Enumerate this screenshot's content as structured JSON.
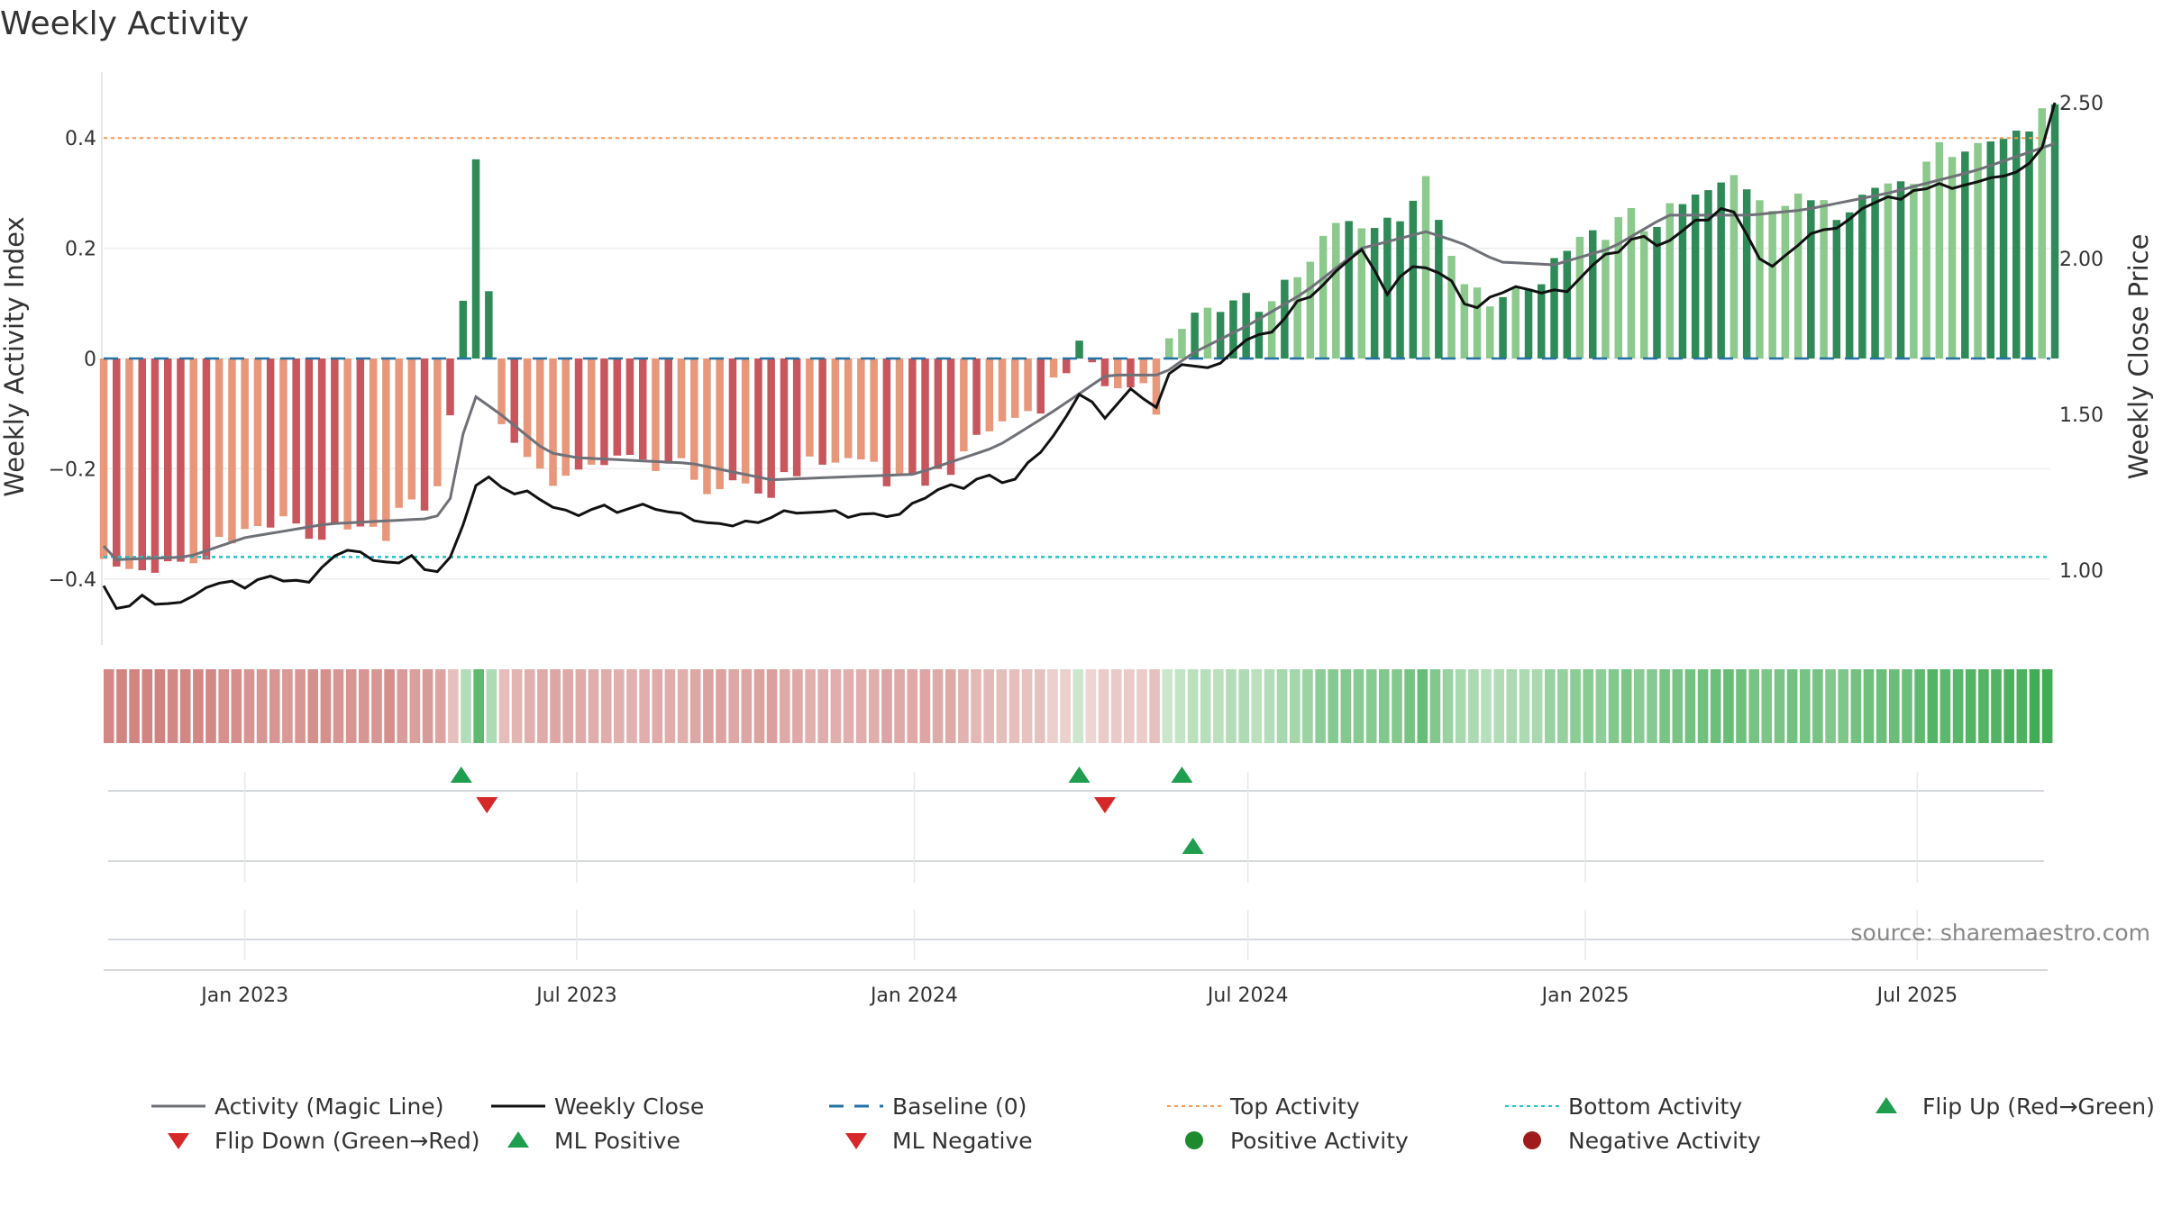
{
  "chart_data": {
    "type": "bar",
    "title": "Weekly Activity",
    "ylabel": "Weekly Activity Index",
    "ylabel_right": "Weekly Close Price",
    "ylim": [
      -0.52,
      0.52
    ],
    "ylim_right": [
      0.78,
      2.6
    ],
    "yticks": [
      -0.4,
      -0.2,
      0,
      0.2,
      0.4
    ],
    "ytick_labels": [
      "−0.4",
      "−0.2",
      "0",
      "0.2",
      "0.4"
    ],
    "yticks_right": [
      1.0,
      1.5,
      2.0,
      2.5
    ],
    "ytick_labels_right": [
      "1.00",
      "1.50",
      "2.00",
      "2.50"
    ],
    "x_start": "2022-10-16",
    "x_end": "2025-09-14",
    "x_ticks": [
      {
        "date": "2023-01-01",
        "label": "Jan 2023"
      },
      {
        "date": "2023-07-01",
        "label": "Jul 2023"
      },
      {
        "date": "2024-01-01",
        "label": "Jan 2024"
      },
      {
        "date": "2024-07-01",
        "label": "Jul 2024"
      },
      {
        "date": "2025-01-01",
        "label": "Jan 2025"
      },
      {
        "date": "2025-07-01",
        "label": "Jul 2025"
      }
    ],
    "top_activity": 0.4,
    "bottom_activity": -0.36,
    "baseline": 0,
    "activity_knots": [
      [
        "2022-10-16",
        -0.37
      ],
      [
        "2022-11-27",
        -0.36
      ],
      [
        "2023-01-01",
        -0.33
      ],
      [
        "2023-02-15",
        -0.3
      ],
      [
        "2023-03-15",
        -0.3
      ],
      [
        "2023-04-15",
        -0.28
      ],
      [
        "2023-04-29",
        0.02
      ],
      [
        "2023-05-06",
        0.39
      ],
      [
        "2023-05-20",
        -0.1
      ],
      [
        "2023-06-15",
        -0.2
      ],
      [
        "2023-07-01",
        -0.2
      ],
      [
        "2023-09-01",
        -0.21
      ],
      [
        "2023-10-15",
        -0.23
      ],
      [
        "2023-11-15",
        -0.2
      ],
      [
        "2024-01-01",
        -0.21
      ],
      [
        "2024-02-15",
        -0.14
      ],
      [
        "2024-03-10",
        -0.1
      ],
      [
        "2024-03-24",
        -0.02
      ],
      [
        "2024-03-31",
        0.04
      ],
      [
        "2024-04-14",
        -0.05
      ],
      [
        "2024-05-05",
        -0.04
      ],
      [
        "2024-05-12",
        -0.08
      ],
      [
        "2024-05-19",
        0.03
      ],
      [
        "2024-06-01",
        0.06
      ],
      [
        "2024-07-01",
        0.1
      ],
      [
        "2024-08-01",
        0.17
      ],
      [
        "2024-08-20",
        0.28
      ],
      [
        "2024-09-01",
        0.22
      ],
      [
        "2024-09-20",
        0.24
      ],
      [
        "2024-10-06",
        0.3
      ],
      [
        "2024-10-25",
        0.15
      ],
      [
        "2024-11-15",
        0.12
      ],
      [
        "2024-12-15",
        0.16
      ],
      [
        "2025-01-15",
        0.22
      ],
      [
        "2025-02-15",
        0.28
      ],
      [
        "2025-03-15",
        0.33
      ],
      [
        "2025-04-15",
        0.26
      ],
      [
        "2025-05-15",
        0.28
      ],
      [
        "2025-06-15",
        0.34
      ],
      [
        "2025-07-15",
        0.36
      ],
      [
        "2025-08-15",
        0.38
      ],
      [
        "2025-09-14",
        0.48
      ]
    ],
    "magic_line_knots": [
      [
        "2022-10-16",
        -0.34
      ],
      [
        "2022-10-23",
        -0.365
      ],
      [
        "2022-12-01",
        -0.36
      ],
      [
        "2023-01-01",
        -0.325
      ],
      [
        "2023-02-15",
        -0.3
      ],
      [
        "2023-04-15",
        -0.29
      ],
      [
        "2023-04-26",
        -0.24
      ],
      [
        "2023-05-03",
        -0.06
      ],
      [
        "2023-05-20",
        -0.1
      ],
      [
        "2023-06-15",
        -0.17
      ],
      [
        "2023-07-01",
        -0.18
      ],
      [
        "2023-09-01",
        -0.19
      ],
      [
        "2023-10-15",
        -0.22
      ],
      [
        "2024-01-01",
        -0.21
      ],
      [
        "2024-02-15",
        -0.16
      ],
      [
        "2024-03-15",
        -0.1
      ],
      [
        "2024-04-15",
        -0.03
      ],
      [
        "2024-05-15",
        -0.03
      ],
      [
        "2024-06-01",
        0.01
      ],
      [
        "2024-07-01",
        0.06
      ],
      [
        "2024-08-01",
        0.12
      ],
      [
        "2024-09-01",
        0.2
      ],
      [
        "2024-10-06",
        0.23
      ],
      [
        "2024-10-25",
        0.21
      ],
      [
        "2024-11-15",
        0.175
      ],
      [
        "2024-12-15",
        0.17
      ],
      [
        "2025-01-15",
        0.2
      ],
      [
        "2025-02-15",
        0.26
      ],
      [
        "2025-04-01",
        0.26
      ],
      [
        "2025-05-01",
        0.27
      ],
      [
        "2025-06-15",
        0.3
      ],
      [
        "2025-08-01",
        0.34
      ],
      [
        "2025-09-14",
        0.39
      ]
    ],
    "close_knots": [
      [
        "2022-10-16",
        0.95
      ],
      [
        "2022-10-23",
        0.89
      ],
      [
        "2022-11-05",
        0.91
      ],
      [
        "2022-11-20",
        0.87
      ],
      [
        "2022-12-15",
        0.94
      ],
      [
        "2023-01-01",
        0.96
      ],
      [
        "2023-01-20",
        0.99
      ],
      [
        "2023-02-01",
        0.97
      ],
      [
        "2023-02-15",
        1.02
      ],
      [
        "2023-02-28",
        1.06
      ],
      [
        "2023-03-15",
        1.01
      ],
      [
        "2023-04-01",
        1.03
      ],
      [
        "2023-04-15",
        1.01
      ],
      [
        "2023-04-26",
        1.06
      ],
      [
        "2023-05-03",
        1.21
      ],
      [
        "2023-05-10",
        1.35
      ],
      [
        "2023-05-20",
        1.28
      ],
      [
        "2023-06-01",
        1.25
      ],
      [
        "2023-06-15",
        1.19
      ],
      [
        "2023-07-01",
        1.17
      ],
      [
        "2023-08-01",
        1.22
      ],
      [
        "2023-09-01",
        1.18
      ],
      [
        "2023-09-20",
        1.13
      ],
      [
        "2023-10-15",
        1.16
      ],
      [
        "2023-11-15",
        1.2
      ],
      [
        "2023-12-15",
        1.18
      ],
      [
        "2024-01-01",
        1.2
      ],
      [
        "2024-01-20",
        1.25
      ],
      [
        "2024-02-10",
        1.28
      ],
      [
        "2024-02-28",
        1.32
      ],
      [
        "2024-03-15",
        1.42
      ],
      [
        "2024-03-31",
        1.57
      ],
      [
        "2024-04-14",
        1.48
      ],
      [
        "2024-04-28",
        1.58
      ],
      [
        "2024-05-12",
        1.5
      ],
      [
        "2024-05-19",
        1.62
      ],
      [
        "2024-06-01",
        1.68
      ],
      [
        "2024-06-15",
        1.67
      ],
      [
        "2024-07-01",
        1.76
      ],
      [
        "2024-07-20",
        1.8
      ],
      [
        "2024-08-15",
        1.93
      ],
      [
        "2024-09-01",
        2.02
      ],
      [
        "2024-09-15",
        1.9
      ],
      [
        "2024-10-01",
        2.0
      ],
      [
        "2024-10-15",
        1.97
      ],
      [
        "2024-11-01",
        1.83
      ],
      [
        "2024-11-20",
        1.9
      ],
      [
        "2024-12-15",
        1.88
      ],
      [
        "2025-01-15",
        2.03
      ],
      [
        "2025-02-01",
        2.08
      ],
      [
        "2025-02-15",
        2.05
      ],
      [
        "2025-03-01",
        2.1
      ],
      [
        "2025-03-20",
        2.15
      ],
      [
        "2025-04-10",
        1.98
      ],
      [
        "2025-05-01",
        2.08
      ],
      [
        "2025-05-20",
        2.12
      ],
      [
        "2025-06-15",
        2.18
      ],
      [
        "2025-07-15",
        2.22
      ],
      [
        "2025-08-01",
        2.25
      ],
      [
        "2025-08-20",
        2.28
      ],
      [
        "2025-09-05",
        2.33
      ],
      [
        "2025-09-14",
        2.5
      ]
    ],
    "close_min": 0.86,
    "close_max": 2.5,
    "flip_up": [
      "2023-04-29",
      "2024-03-31",
      "2024-05-26"
    ],
    "flip_down": [
      "2023-05-13",
      "2024-04-14"
    ],
    "ml_positive": [
      "2024-06-01"
    ],
    "ml_negative": [],
    "positive_activity": [],
    "negative_activity": [],
    "legend": [
      {
        "label": "Activity (Magic Line)",
        "kind": "line",
        "color": "#6f7178",
        "dash": ""
      },
      {
        "label": "Weekly Close",
        "kind": "line",
        "color": "#111111",
        "dash": ""
      },
      {
        "label": "Baseline (0)",
        "kind": "line",
        "color": "#2471a3",
        "dash": "16,12"
      },
      {
        "label": "Top Activity",
        "kind": "line",
        "color": "#f39c5a",
        "dash": "4,4"
      },
      {
        "label": "Bottom Activity",
        "kind": "line",
        "color": "#22c3c8",
        "dash": "4,4"
      },
      {
        "label": "Flip Up (Red→Green)",
        "kind": "tri-up",
        "color": "#1e9e4e",
        "dash": ""
      },
      {
        "label": "Flip Down (Green→Red)",
        "kind": "tri-down",
        "color": "#d62828",
        "dash": ""
      },
      {
        "label": "ML Positive",
        "kind": "tri-up",
        "color": "#1e9e4e",
        "dash": ""
      },
      {
        "label": "ML Negative",
        "kind": "tri-down",
        "color": "#d62828",
        "dash": ""
      },
      {
        "label": "Positive Activity",
        "kind": "dot",
        "color": "#1e8a2e",
        "dash": ""
      },
      {
        "label": "Negative Activity",
        "kind": "dot",
        "color": "#a01c1c",
        "dash": ""
      }
    ],
    "legend_placement": "bottom",
    "grid": true,
    "source": "source: sharemaestro.com",
    "colors": {
      "neg_dark": "#c9565c",
      "neg_light": "#e8977a",
      "pos_dark": "#2e8b57",
      "pos_light": "#8cc98c",
      "magic_line": "#6f7178",
      "close": "#111111",
      "baseline": "#2471a3",
      "top": "#f39c5a",
      "bottom": "#22c3c8"
    }
  }
}
